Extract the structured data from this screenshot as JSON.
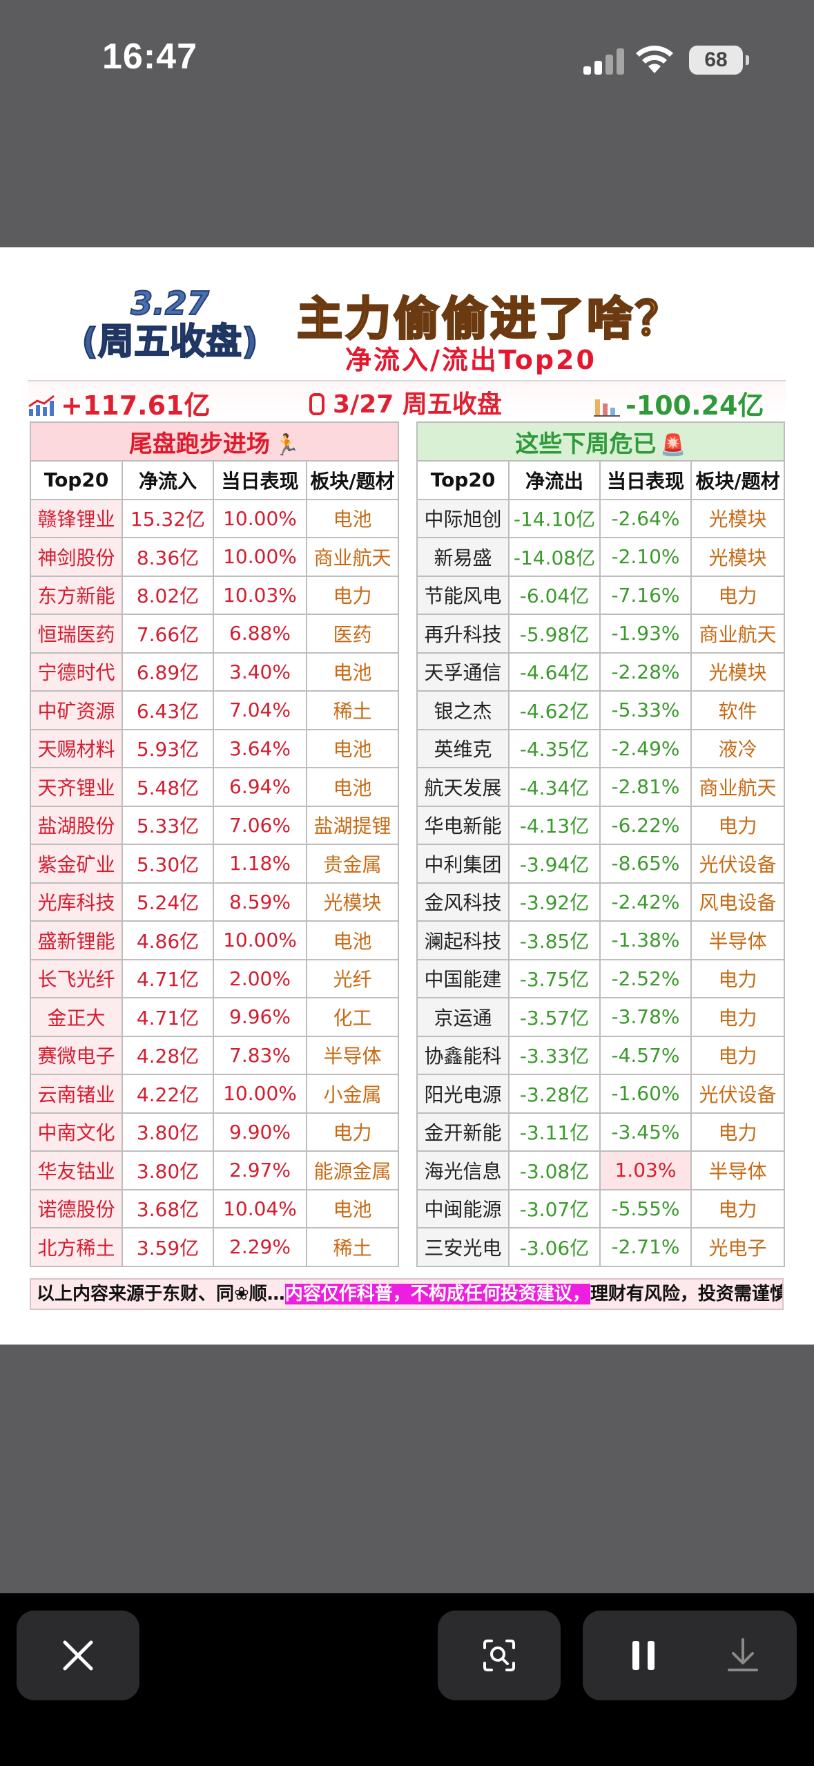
{
  "status_bar": {
    "time": "16:47",
    "battery": "68"
  },
  "header": {
    "date": "3.27",
    "date_sub": "(周五收盘)",
    "title": "主力偷偷进了啥？",
    "subtitle": "净流入/流出Top20"
  },
  "summary": {
    "inflow_total": "+117.61亿",
    "session": "3/27 周五收盘",
    "outflow_total": "-100.24亿"
  },
  "inflow_table": {
    "caption": "尾盘跑步进场",
    "headers": [
      "Top20",
      "净流入",
      "当日表现",
      "板块/题材"
    ],
    "rows": [
      [
        "赣锋锂业",
        "15.32亿",
        "10.00%",
        "电池"
      ],
      [
        "神剑股份",
        "8.36亿",
        "10.00%",
        "商业航天"
      ],
      [
        "东方新能",
        "8.02亿",
        "10.03%",
        "电力"
      ],
      [
        "恒瑞医药",
        "7.66亿",
        "6.88%",
        "医药"
      ],
      [
        "宁德时代",
        "6.89亿",
        "3.40%",
        "电池"
      ],
      [
        "中矿资源",
        "6.43亿",
        "7.04%",
        "稀土"
      ],
      [
        "天赐材料",
        "5.93亿",
        "3.64%",
        "电池"
      ],
      [
        "天齐锂业",
        "5.48亿",
        "6.94%",
        "电池"
      ],
      [
        "盐湖股份",
        "5.33亿",
        "7.06%",
        "盐湖提锂"
      ],
      [
        "紫金矿业",
        "5.30亿",
        "1.18%",
        "贵金属"
      ],
      [
        "光库科技",
        "5.24亿",
        "8.59%",
        "光模块"
      ],
      [
        "盛新锂能",
        "4.86亿",
        "10.00%",
        "电池"
      ],
      [
        "长飞光纤",
        "4.71亿",
        "2.00%",
        "光纤"
      ],
      [
        "金正大",
        "4.71亿",
        "9.96%",
        "化工"
      ],
      [
        "赛微电子",
        "4.28亿",
        "7.83%",
        "半导体"
      ],
      [
        "云南锗业",
        "4.22亿",
        "10.00%",
        "小金属"
      ],
      [
        "中南文化",
        "3.80亿",
        "9.90%",
        "电力"
      ],
      [
        "华友钴业",
        "3.80亿",
        "2.97%",
        "能源金属"
      ],
      [
        "诺德股份",
        "3.68亿",
        "10.04%",
        "电池"
      ],
      [
        "北方稀土",
        "3.59亿",
        "2.29%",
        "稀土"
      ]
    ]
  },
  "outflow_table": {
    "caption": "这些下周危已",
    "headers": [
      "Top20",
      "净流出",
      "当日表现",
      "板块/题材"
    ],
    "rows": [
      [
        "中际旭创",
        "-14.10亿",
        "-2.64%",
        "光模块"
      ],
      [
        "新易盛",
        "-14.08亿",
        "-2.10%",
        "光模块"
      ],
      [
        "节能风电",
        "-6.04亿",
        "-7.16%",
        "电力"
      ],
      [
        "再升科技",
        "-5.98亿",
        "-1.93%",
        "商业航天"
      ],
      [
        "天孚通信",
        "-4.64亿",
        "-2.28%",
        "光模块"
      ],
      [
        "银之杰",
        "-4.62亿",
        "-5.33%",
        "软件"
      ],
      [
        "英维克",
        "-4.35亿",
        "-2.49%",
        "液冷"
      ],
      [
        "航天发展",
        "-4.34亿",
        "-2.81%",
        "商业航天"
      ],
      [
        "华电新能",
        "-4.13亿",
        "-6.22%",
        "电力"
      ],
      [
        "中利集团",
        "-3.94亿",
        "-8.65%",
        "光伏设备"
      ],
      [
        "金风科技",
        "-3.92亿",
        "-2.42%",
        "风电设备"
      ],
      [
        "澜起科技",
        "-3.85亿",
        "-1.38%",
        "半导体"
      ],
      [
        "中国能建",
        "-3.75亿",
        "-2.52%",
        "电力"
      ],
      [
        "京运通",
        "-3.57亿",
        "-3.78%",
        "电力"
      ],
      [
        "协鑫能科",
        "-3.33亿",
        "-4.57%",
        "电力"
      ],
      [
        "阳光电源",
        "-3.28亿",
        "-1.60%",
        "光伏设备"
      ],
      [
        "金开新能",
        "-3.11亿",
        "-3.45%",
        "电力"
      ],
      [
        "海光信息",
        "-3.08亿",
        "1.03%",
        "半导体"
      ],
      [
        "中闽能源",
        "-3.07亿",
        "-5.55%",
        "电力"
      ],
      [
        "三安光电",
        "-3.06亿",
        "-2.71%",
        "光电子"
      ]
    ]
  },
  "disclaimer": {
    "part1": "以上内容来源于东财、同❀顺…",
    "part2": "内容仅作科普，不构成任何投资建议，",
    "part3": "理财有风险，投资需谨慎"
  },
  "icons": {
    "close": "close-icon",
    "lens": "visual-lookup-icon",
    "pause": "pause-icon",
    "download": "download-icon"
  },
  "colors": {
    "inflow_red": "#e02031",
    "outflow_green": "#2e9a3a",
    "sector_orange": "#c76a14",
    "title_orange": "#f1a22a",
    "highlight_magenta": "#ee1ee0"
  }
}
